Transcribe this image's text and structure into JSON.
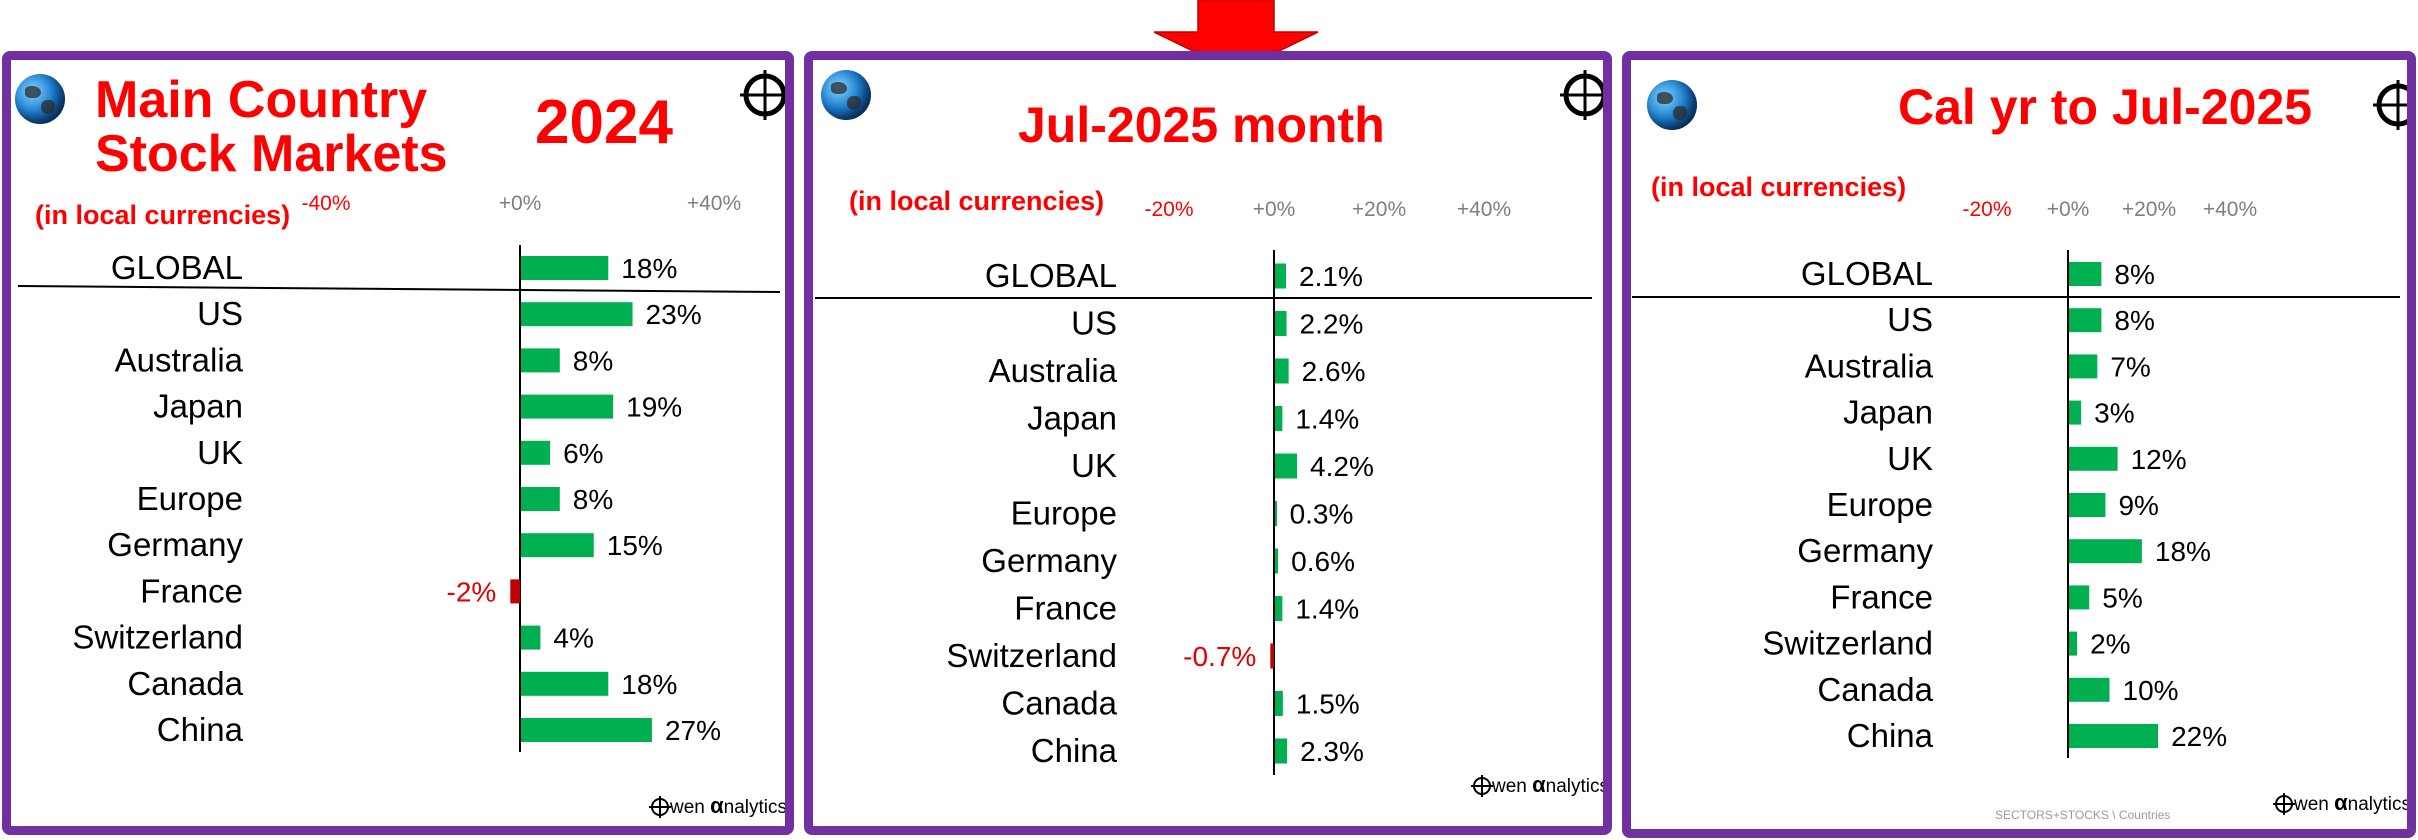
{
  "page": {
    "footer_note": "SECTORS+STOCKS \\ Countries",
    "logo_text": "wen ",
    "logo_alpha": "α",
    "logo_suffix": "nalytics"
  },
  "colors": {
    "frame": "#7030a0",
    "title": "#ff0000",
    "positive_bar": "#00b050",
    "negative_bar": "#c00000",
    "negative_label": "#e00000",
    "tick_negative": "#ff0000",
    "tick_positive": "#7f7f7f"
  },
  "icons": [
    "globe-icon",
    "crosshair-icon",
    "down-arrow-icon",
    "owen-analytics-logo"
  ],
  "chart_data": [
    {
      "type": "bar",
      "orientation": "horizontal",
      "title_lines": [
        "Main Country",
        "Stock Markets"
      ],
      "title_year": "2024",
      "subtitle": "(in local currencies)",
      "xticks": [
        "-40%",
        "+0%",
        "+40%"
      ],
      "xtick_values": [
        -40,
        0,
        40
      ],
      "xlim": [
        -40,
        40
      ],
      "categories": [
        "GLOBAL",
        "US",
        "Australia",
        "Japan",
        "UK",
        "Europe",
        "Germany",
        "France",
        "Switzerland",
        "Canada",
        "China"
      ],
      "values": [
        18,
        23,
        8,
        19,
        6,
        8,
        15,
        -2,
        4,
        18,
        27
      ],
      "value_labels": [
        "18%",
        "23%",
        "8%",
        "19%",
        "6%",
        "8%",
        "15%",
        "-2%",
        "4%",
        "18%",
        "27%"
      ],
      "separator_after": "GLOBAL",
      "grid": false,
      "legend": false
    },
    {
      "type": "bar",
      "orientation": "horizontal",
      "title": "Jul-2025 month",
      "subtitle": "(in local currencies)",
      "xticks": [
        "-20%",
        "+0%",
        "+20%",
        "+40%"
      ],
      "xtick_values": [
        -20,
        0,
        20,
        40
      ],
      "xlim": [
        -20,
        40
      ],
      "categories": [
        "GLOBAL",
        "US",
        "Australia",
        "Japan",
        "UK",
        "Europe",
        "Germany",
        "France",
        "Switzerland",
        "Canada",
        "China"
      ],
      "values": [
        2.1,
        2.2,
        2.6,
        1.4,
        4.2,
        0.3,
        0.6,
        1.4,
        -0.7,
        1.5,
        2.3
      ],
      "value_labels": [
        "2.1%",
        "2.2%",
        "2.6%",
        "1.4%",
        "4.2%",
        "0.3%",
        "0.6%",
        "1.4%",
        "-0.7%",
        "1.5%",
        "2.3%"
      ],
      "separator_after": "GLOBAL",
      "grid": false,
      "legend": false
    },
    {
      "type": "bar",
      "orientation": "horizontal",
      "title": "Cal yr to Jul-2025",
      "subtitle": "(in local currencies)",
      "xticks": [
        "-20%",
        "+0%",
        "+20%",
        "+40%"
      ],
      "xtick_values": [
        -20,
        0,
        20,
        40
      ],
      "xlim": [
        -20,
        40
      ],
      "categories": [
        "GLOBAL",
        "US",
        "Australia",
        "Japan",
        "UK",
        "Europe",
        "Germany",
        "France",
        "Switzerland",
        "Canada",
        "China"
      ],
      "values": [
        8,
        8,
        7,
        3,
        12,
        9,
        18,
        5,
        2,
        10,
        22
      ],
      "value_labels": [
        "8%",
        "8%",
        "7%",
        "3%",
        "12%",
        "9%",
        "18%",
        "5%",
        "2%",
        "10%",
        "22%"
      ],
      "separator_after": "GLOBAL",
      "grid": false,
      "legend": false
    }
  ]
}
